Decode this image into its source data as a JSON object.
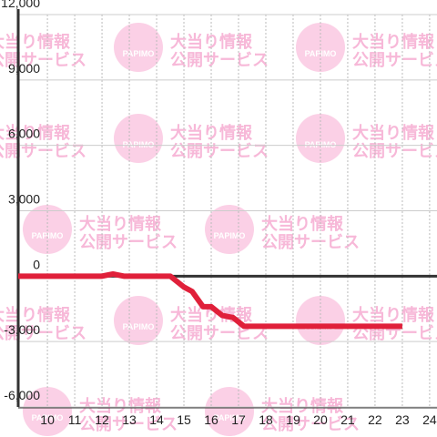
{
  "chart_data": {
    "type": "line",
    "x": [
      8.93,
      12,
      12.4,
      12.8,
      14.5,
      15,
      15.3,
      15.7,
      16,
      16.4,
      16.8,
      17.2,
      23
    ],
    "series": [
      {
        "color": "#e0203a",
        "values": [
          0,
          0,
          100,
          0,
          0,
          -500,
          -700,
          -1400,
          -1400,
          -1800,
          -1900,
          -2300,
          -2300
        ]
      }
    ],
    "ylim": [
      -6000,
      12000
    ],
    "yticks": [
      {
        "value": -6000,
        "label": "-6,000"
      },
      {
        "value": -3000,
        "label": "-3,000"
      },
      0,
      {
        "value": 3000,
        "label": "3,000"
      },
      {
        "value": 6000,
        "label": "6,000"
      },
      {
        "value": 9000,
        "label": "9,000"
      },
      {
        "value": 12000,
        "label": "12,000"
      }
    ],
    "xlim": [
      8.93,
      24.27
    ],
    "xticks": [
      10,
      11,
      12,
      13,
      14,
      15,
      16,
      17,
      18,
      19,
      20,
      21,
      22,
      23,
      24
    ],
    "grid": true,
    "watermark": {
      "brand": "PAPIMO",
      "line1": "大当り情報",
      "line2": "公開サービス"
    }
  }
}
